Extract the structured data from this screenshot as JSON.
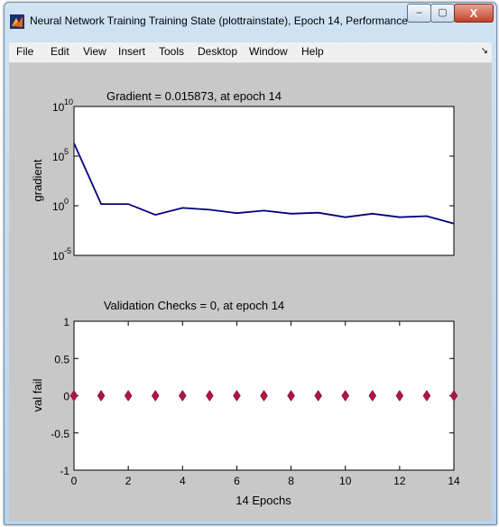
{
  "window": {
    "title": "Neural Network Training Training State (plottrainstate), Epoch 14, Performance ...",
    "controls": {
      "minimize": "–",
      "maximize": "▢",
      "close": "X"
    }
  },
  "menu": {
    "items": [
      "File",
      "Edit",
      "View",
      "Insert",
      "Tools",
      "Desktop",
      "Window",
      "Help"
    ],
    "dock_arrow": "↘"
  },
  "chart_data": [
    {
      "type": "line",
      "title": "Gradient = 0.015873, at epoch 14",
      "xlabel": "",
      "ylabel": "gradient",
      "yscale": "log",
      "xlim": [
        0,
        14
      ],
      "ylim": [
        1e-05,
        10000000000
      ],
      "yticks": [
        {
          "value": 1e-05,
          "base": "10",
          "exp": "-5"
        },
        {
          "value": 1,
          "base": "10",
          "exp": "0"
        },
        {
          "value": 100000,
          "base": "10",
          "exp": "5"
        },
        {
          "value": 10000000000,
          "base": "10",
          "exp": "10"
        }
      ],
      "color": "#000080",
      "grid": false,
      "x": [
        0,
        1,
        2,
        3,
        4,
        5,
        6,
        7,
        8,
        9,
        10,
        11,
        12,
        13,
        14
      ],
      "y": [
        2000000,
        1.5,
        1.5,
        0.12,
        0.6,
        0.4,
        0.18,
        0.32,
        0.16,
        0.2,
        0.07,
        0.16,
        0.07,
        0.09,
        0.015873
      ]
    },
    {
      "type": "scatter",
      "title": "Validation Checks = 0, at epoch 14",
      "xlabel": "14 Epochs",
      "ylabel": "val fail",
      "xlim": [
        0,
        14
      ],
      "ylim": [
        -1,
        1
      ],
      "xticks": [
        "0",
        "2",
        "4",
        "6",
        "8",
        "10",
        "12",
        "14"
      ],
      "yticks": [
        "-1",
        "-0.5",
        "0",
        "0.5",
        "1"
      ],
      "marker": "diamond",
      "color": "#b01440",
      "grid": false,
      "x": [
        0,
        1,
        2,
        3,
        4,
        5,
        6,
        7,
        8,
        9,
        10,
        11,
        12,
        13,
        14
      ],
      "y": [
        0,
        0,
        0,
        0,
        0,
        0,
        0,
        0,
        0,
        0,
        0,
        0,
        0,
        0,
        0
      ]
    }
  ]
}
